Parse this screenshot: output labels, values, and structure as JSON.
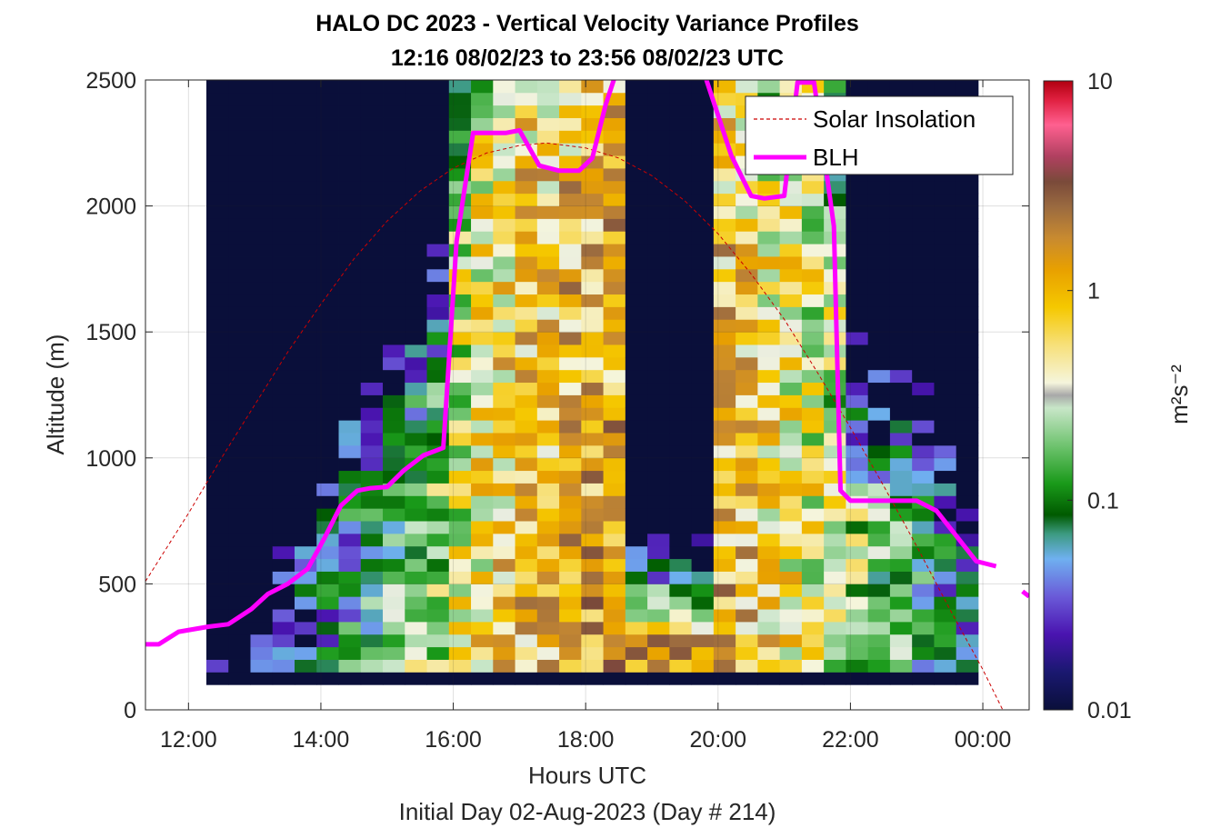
{
  "chart_data": {
    "type": "heatmap",
    "title": "HALO DC 2023 - Vertical Velocity Variance Profiles",
    "subtitle": "12:16 08/02/23 to 23:56 08/02/23  UTC",
    "xlabel": "Hours UTC",
    "ylabel": "Altitude (m)",
    "footer": "Initial Day 02-Aug-2023 (Day # 214)",
    "xlim": [
      11.35,
      24.7
    ],
    "ylim": [
      0,
      2500
    ],
    "x_ticks": [
      {
        "value": 12,
        "label": "12:00"
      },
      {
        "value": 14,
        "label": "14:00"
      },
      {
        "value": 16,
        "label": "16:00"
      },
      {
        "value": 18,
        "label": "18:00"
      },
      {
        "value": 20,
        "label": "20:00"
      },
      {
        "value": 22,
        "label": "22:00"
      },
      {
        "value": 24,
        "label": "00:00"
      }
    ],
    "y_ticks": [
      {
        "value": 0,
        "label": "0"
      },
      {
        "value": 500,
        "label": "500"
      },
      {
        "value": 1000,
        "label": "1000"
      },
      {
        "value": 1500,
        "label": "1500"
      },
      {
        "value": 2000,
        "label": "2000"
      },
      {
        "value": 2500,
        "label": "2500"
      }
    ],
    "colorbar": {
      "label": "m²s⁻²",
      "scale": "log",
      "range": [
        0.01,
        10
      ],
      "ticks": [
        {
          "value": 0.01,
          "label": "0.01"
        },
        {
          "value": 0.1,
          "label": "0.1"
        },
        {
          "value": 1,
          "label": "1"
        },
        {
          "value": 10,
          "label": "10"
        }
      ]
    },
    "grid": true,
    "legend_position": "top-right",
    "heatmap": {
      "time_start": 12.27,
      "time_end": 23.93,
      "altitude_min": 100,
      "altitude_max": 2500,
      "altitude_step": 50,
      "value_units": "m2 s-2",
      "approximate": true
    },
    "series": [
      {
        "name": "Solar Insolation",
        "style": "dashed",
        "color": "#cc0000",
        "x": [
          11.35,
          12.0,
          12.5,
          13.0,
          13.5,
          14.0,
          14.5,
          15.0,
          15.5,
          16.0,
          16.5,
          17.0,
          17.4,
          18.0,
          18.5,
          19.0,
          19.5,
          20.0,
          20.5,
          21.0,
          21.5,
          22.0,
          22.5,
          23.0,
          23.5,
          24.0,
          24.3,
          24.7
        ],
        "y": [
          510,
          780,
          1000,
          1210,
          1420,
          1610,
          1790,
          1940,
          2060,
          2150,
          2210,
          2240,
          2250,
          2230,
          2190,
          2120,
          2020,
          1890,
          1730,
          1550,
          1340,
          1120,
          890,
          650,
          400,
          160,
          0,
          0
        ]
      },
      {
        "name": "BLH",
        "style": "solid",
        "color": "#ff00ff",
        "segments": [
          {
            "x": [
              11.35,
              11.55,
              11.85,
              12.3,
              12.6,
              12.95,
              13.2,
              13.5,
              13.8,
              14.05,
              14.3,
              14.55,
              14.75,
              15.0,
              15.25,
              15.55,
              15.85,
              16.05,
              16.3,
              16.5,
              16.8,
              17.0,
              17.3,
              17.6,
              17.9,
              18.1,
              18.3,
              18.45
            ],
            "y": [
              260,
              260,
              310,
              330,
              340,
              400,
              460,
              500,
              560,
              680,
              810,
              870,
              880,
              885,
              950,
              1010,
              1040,
              1860,
              2290,
              2290,
              2290,
              2300,
              2160,
              2140,
              2140,
              2190,
              2400,
              2520
            ]
          },
          {
            "x": [
              19.8,
              20.2,
              20.5,
              20.7,
              21.0,
              21.2,
              21.45,
              21.75,
              21.85,
              22.0,
              22.5,
              23.0,
              23.3,
              23.6,
              23.9,
              24.2
            ],
            "y": [
              2520,
              2200,
              2040,
              2030,
              2040,
              2490,
              2490,
              1920,
              870,
              830,
              830,
              830,
              790,
              690,
              590,
              570
            ]
          },
          {
            "x": [
              24.6,
              24.7
            ],
            "y": [
              470,
              450
            ]
          }
        ]
      }
    ]
  }
}
